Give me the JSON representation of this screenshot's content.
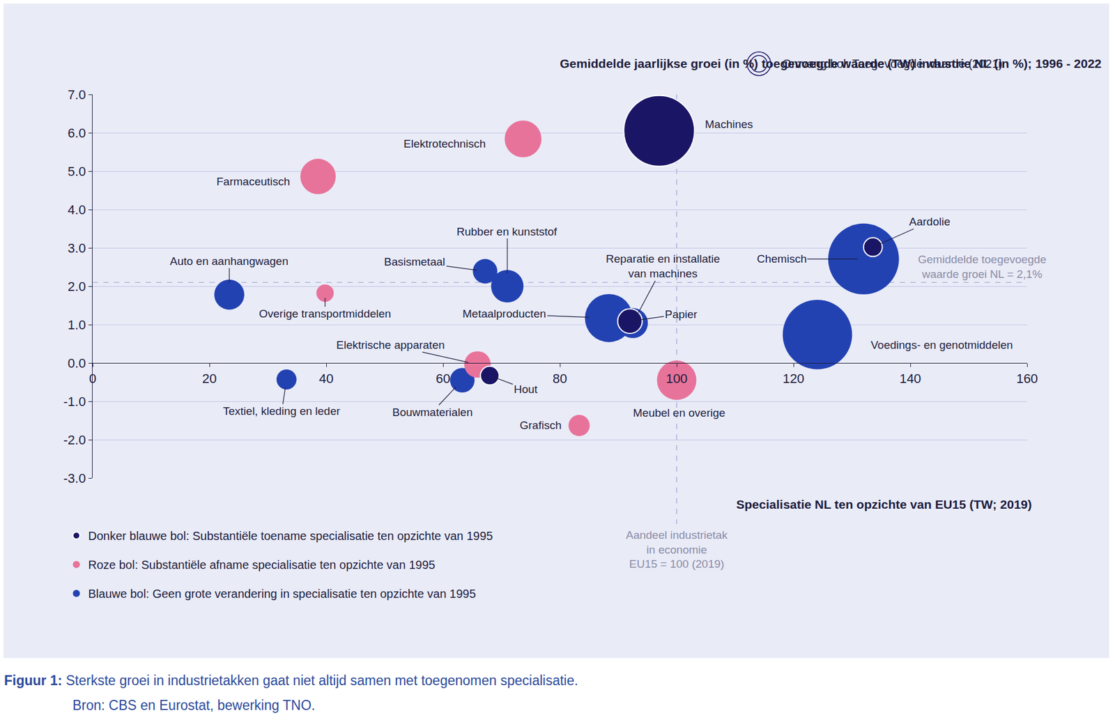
{
  "chart_data": {
    "type": "scatter",
    "marker": "bubble",
    "title": "Gemiddelde jaarlijkse groei (in %) toegevoegde waarde (TW) industrie NL (in %); 1996 - 2022",
    "size_note": "Omvang bol: Toegevoegde waarde (2021)",
    "xlabel": "Specialisatie NL ten opzichte van EU15 (TW; 2019)",
    "xlim": [
      0,
      160
    ],
    "xticks": [
      0,
      20,
      40,
      60,
      80,
      100,
      120,
      140,
      160
    ],
    "ylim": [
      -3,
      7
    ],
    "yticks": [
      {
        "value": -3,
        "label": "-3.0"
      },
      {
        "value": -2,
        "label": "-2.0"
      },
      {
        "value": -1,
        "label": "-1.0"
      },
      {
        "value": 0,
        "label": "0.0"
      },
      {
        "value": 1,
        "label": "1.0"
      },
      {
        "value": 2,
        "label": "2.0"
      },
      {
        "value": 3,
        "label": "3.0"
      },
      {
        "value": 4,
        "label": "4.0"
      },
      {
        "value": 5,
        "label": "5.0"
      },
      {
        "value": 6,
        "label": "6.0"
      },
      {
        "value": 7,
        "label": "7.0"
      }
    ],
    "grid": true,
    "legend": "bottom left",
    "reference_lines": {
      "x": 100,
      "x_label": "Aandeel industrietak\nin economie\nEU15 = 100 (2019)",
      "y": 2.1,
      "y_label": "Gemiddelde toegevoegde\nwaarde groei NL = 2,1%"
    },
    "series": [
      {
        "name": "Donker blauwe bol: Substantiële toename specialisatie ten opzichte van 1995",
        "color": "#1b1565",
        "labels": [
          "Machines",
          "Papier",
          "Aardolie",
          "Hout"
        ],
        "x": [
          97.0,
          92.0,
          133.6,
          68.0
        ],
        "y": [
          6.05,
          1.09,
          3.02,
          -0.33
        ],
        "size": [
          10.0,
          1.2,
          0.7,
          0.7
        ]
      },
      {
        "name": "Roze bol: Substantiële afname specialisatie ten opzichte van 1995",
        "color": "#e8739a",
        "labels": [
          "Elektrotechnisch",
          "Farmaceutisch",
          "Overige transportmiddelen",
          "Elektrische apparaten",
          "Meubel en overige",
          "Grafisch"
        ],
        "x": [
          73.7,
          38.6,
          39.8,
          65.9,
          100.0,
          83.3
        ],
        "y": [
          5.84,
          4.86,
          1.82,
          -0.04,
          -0.45,
          -1.63
        ],
        "size": [
          2.7,
          2.5,
          0.6,
          1.4,
          3.1,
          0.9
        ]
      },
      {
        "name": "Blauwe bol: Geen grote verandering in specialisatie ten opzichte van 1995",
        "color": "#2342b2",
        "labels": [
          "Rubber en kunststof",
          "Basismetaal",
          "Auto en aanhangwagen",
          "Metaalproducten",
          "Reparatie en installatie\nvan machines",
          "Chemisch",
          "Voedings- en genotmiddelen",
          "Bouwmaterialen",
          "Textiel, kleding en leder"
        ],
        "x": [
          71.0,
          67.2,
          23.4,
          88.4,
          92.5,
          132.0,
          124.1,
          63.3,
          33.2
        ],
        "y": [
          2.0,
          2.39,
          1.78,
          1.17,
          1.04,
          2.71,
          0.74,
          -0.45,
          -0.43
        ],
        "size": [
          2.1,
          1.2,
          1.8,
          4.6,
          1.8,
          10.0,
          9.6,
          1.2,
          0.8
        ]
      }
    ],
    "caption": {
      "label": "Figuur 1:",
      "text": "Sterkste groei in industrietakken gaat niet altijd samen met toegenomen specialisatie.",
      "source": "Bron: CBS en Eurostat, bewerking TNO."
    }
  }
}
